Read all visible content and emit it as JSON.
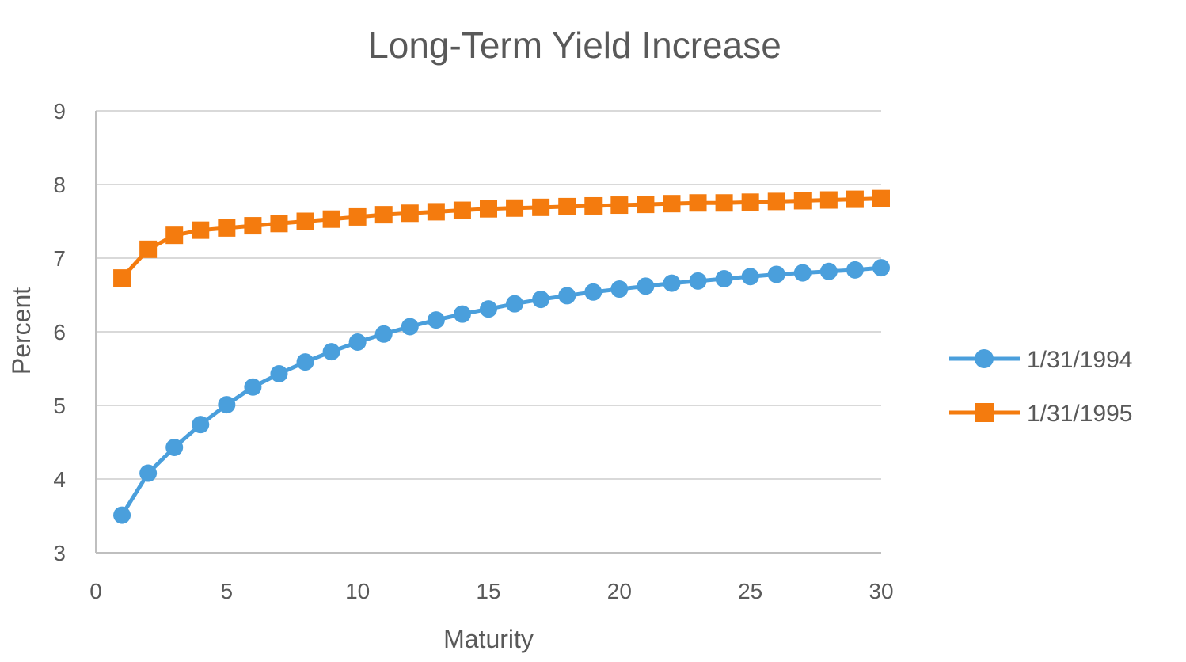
{
  "chart_data": {
    "type": "line",
    "title": "Long-Term Yield Increase",
    "xlabel": "Maturity",
    "ylabel": "Percent",
    "xlim": [
      0,
      30
    ],
    "ylim": [
      3,
      9
    ],
    "xticks": [
      0,
      5,
      10,
      15,
      20,
      25,
      30
    ],
    "yticks": [
      3,
      4,
      5,
      6,
      7,
      8,
      9
    ],
    "grid": "horizontal",
    "legend_position": "right",
    "x": [
      1,
      2,
      3,
      4,
      5,
      6,
      7,
      8,
      9,
      10,
      11,
      12,
      13,
      14,
      15,
      16,
      17,
      18,
      19,
      20,
      21,
      22,
      23,
      24,
      25,
      26,
      27,
      28,
      29,
      30
    ],
    "series": [
      {
        "name": "1/31/1994",
        "color": "#4a9fdc",
        "marker": "circle",
        "values": [
          3.51,
          4.08,
          4.43,
          4.74,
          5.01,
          5.25,
          5.43,
          5.59,
          5.73,
          5.86,
          5.97,
          6.07,
          6.16,
          6.24,
          6.31,
          6.38,
          6.44,
          6.49,
          6.54,
          6.58,
          6.62,
          6.66,
          6.69,
          6.72,
          6.75,
          6.78,
          6.8,
          6.82,
          6.84,
          6.87
        ]
      },
      {
        "name": "1/31/1995",
        "color": "#f47b0e",
        "marker": "square",
        "values": [
          6.73,
          7.12,
          7.31,
          7.38,
          7.41,
          7.44,
          7.47,
          7.5,
          7.53,
          7.56,
          7.59,
          7.61,
          7.63,
          7.65,
          7.67,
          7.68,
          7.69,
          7.7,
          7.71,
          7.72,
          7.73,
          7.74,
          7.75,
          7.75,
          7.76,
          7.77,
          7.78,
          7.79,
          7.8,
          7.81
        ]
      }
    ]
  }
}
